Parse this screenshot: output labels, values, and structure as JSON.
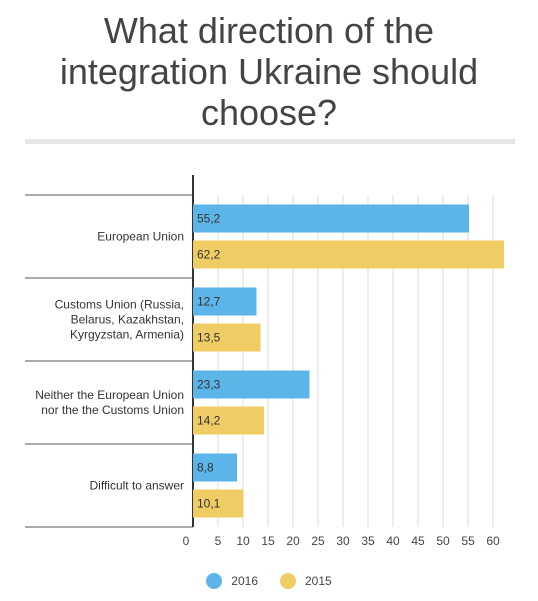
{
  "title_lines": [
    "What direction of the",
    "integration Ukraine should",
    "choose?"
  ],
  "chart_data": {
    "type": "bar",
    "orientation": "horizontal",
    "title": "What direction of the integration Ukraine should choose?",
    "categories": [
      [
        "European Union"
      ],
      [
        "Customs Union (Russia,",
        "Belarus, Kazakhstan,",
        "Kyrgyzstan, Armenia)"
      ],
      [
        "Neither the European Union",
        "nor the the Customs Union"
      ],
      [
        "Difficult to answer"
      ]
    ],
    "series": [
      {
        "name": "2016",
        "color": "#5bb5e8",
        "values": [
          55.2,
          12.7,
          23.3,
          8.8
        ],
        "labels": [
          "55,2",
          "12,7",
          "23,3",
          "8,8"
        ]
      },
      {
        "name": "2015",
        "color": "#f0cc65",
        "values": [
          62.2,
          13.5,
          14.2,
          10.1
        ],
        "labels": [
          "62,2",
          "13,5",
          "14,2",
          "10,1"
        ]
      }
    ],
    "xlim": [
      0,
      63
    ],
    "x_ticks": [
      0,
      5,
      10,
      15,
      20,
      25,
      30,
      35,
      40,
      45,
      50,
      55,
      60
    ],
    "grid": true,
    "legend_position": "bottom"
  }
}
